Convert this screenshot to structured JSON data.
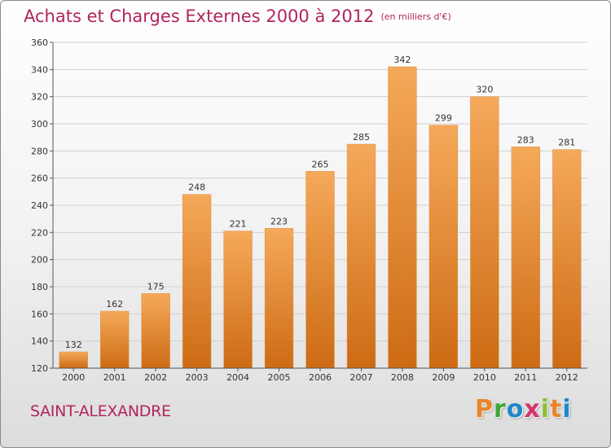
{
  "title": "Achats et Charges Externes 2000 à 2012",
  "subtitle": "(en milliers d'€)",
  "commune": "SAINT-ALEXANDRE",
  "logo": {
    "letters": [
      "P",
      "r",
      "o",
      "x",
      "i",
      "t",
      "i"
    ],
    "colors": [
      "#e8862b",
      "#3fa535",
      "#1e88c8",
      "#d6336c",
      "#8bbf2e",
      "#e8862b",
      "#1e88c8"
    ]
  },
  "colors": {
    "title": "#b2245e",
    "bar_light": "#f5a95a",
    "bar_dark": "#cd6b14",
    "grid": "#cfcfcf",
    "axis": "#555555"
  },
  "chart_data": {
    "type": "bar",
    "title": "Achats et Charges Externes 2000 à 2012",
    "subtitle": "(en milliers d'€)",
    "xlabel": "",
    "ylabel": "",
    "categories": [
      "2000",
      "2001",
      "2002",
      "2003",
      "2004",
      "2005",
      "2006",
      "2007",
      "2008",
      "2009",
      "2010",
      "2011",
      "2012"
    ],
    "values": [
      132,
      162,
      175,
      248,
      221,
      223,
      265,
      285,
      342,
      299,
      320,
      283,
      281
    ],
    "ylim": [
      120,
      360
    ],
    "yticks": [
      120,
      140,
      160,
      180,
      200,
      220,
      240,
      260,
      280,
      300,
      320,
      340,
      360
    ],
    "grid": true
  }
}
